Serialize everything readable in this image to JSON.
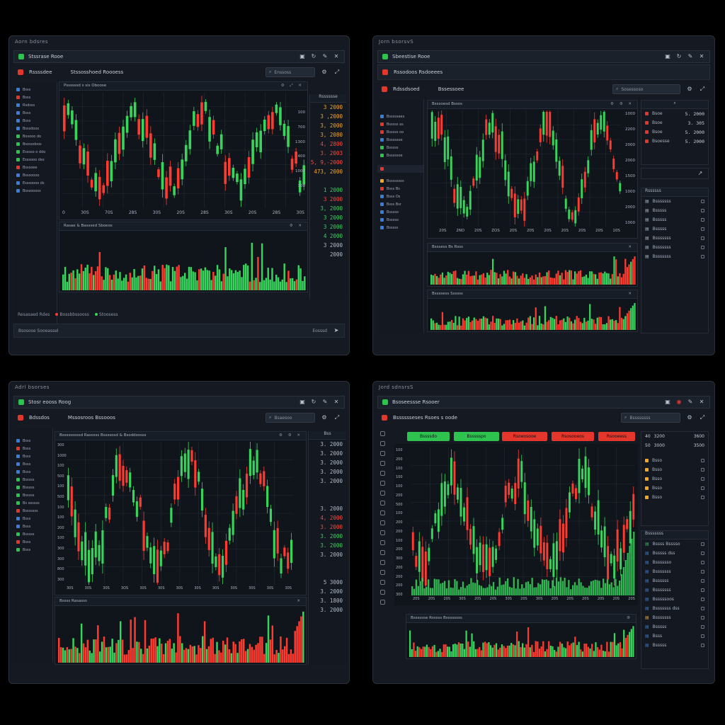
{
  "colors": {
    "up": "#38d45c",
    "down": "#ff3b30",
    "bg": "#151a22",
    "panel": "#10151c",
    "accent": "#f5a623"
  },
  "windows": [
    {
      "label": "Aorn bdsres",
      "title": "Stssrase Rooe",
      "toolbar_title": "Rssssdee",
      "toolbar_sub": "Stssosshoed Roooess",
      "search": "Enssoss",
      "sidebar": [
        "Bsss",
        "Bsss",
        "Rsdsss",
        "Bsss",
        "Bsss",
        "Bsssdoos",
        "Bosooo do",
        "Bsosodoos",
        "Esssso o ddo",
        "Esssooo dso",
        "Bsssoee",
        "Bsssoooo",
        "Esssoooo ds",
        "Bsssoooss"
      ],
      "chart_title": "Pssssssd s sis Oboose",
      "vol_title": "Rasae & Basssed Sboeos",
      "time_ticks": [
        "0",
        "30S",
        "70S",
        "28S",
        "30S",
        "20S",
        "28S",
        "30S",
        "20S",
        "28S",
        "30S"
      ],
      "axis_right": [
        "100",
        "700",
        "1300",
        "400",
        "1000",
        "300"
      ],
      "price_header": "Rsssssse",
      "prices": [
        {
          "v": "3 2000",
          "c": "orange"
        },
        {
          "v": "3 ,2000",
          "c": "orange"
        },
        {
          "v": "3, 2000",
          "c": "orange"
        },
        {
          "v": "3, 2080",
          "c": "orange"
        },
        {
          "v": "4, 2800",
          "c": "red"
        },
        {
          "v": "3. 2003",
          "c": "red"
        },
        {
          "v": "5, 9,-2000",
          "c": "red"
        },
        {
          "v": "473, 2000",
          "c": "orange"
        },
        {
          "v": "",
          "c": "grey"
        },
        {
          "v": "1 2000",
          "c": "green"
        },
        {
          "v": "3 2000",
          "c": "red"
        },
        {
          "v": "3, 2000",
          "c": "green"
        },
        {
          "v": "3 2000",
          "c": "green"
        },
        {
          "v": "3 2000",
          "c": "green"
        },
        {
          "v": "4 2000",
          "c": "green"
        },
        {
          "v": "3 2000",
          "c": "grey"
        },
        {
          "v": "2000",
          "c": "grey"
        }
      ],
      "status_left": "Resasaed Rdes",
      "legend": [
        "Bossbbssooss",
        "Stoosess"
      ],
      "footer": "Bsosose  Sooeassel",
      "footer_right": "Eosssd"
    },
    {
      "label": "Jorn bsorsvS",
      "title": "Sbeestise Rooe",
      "toolbar_title": "Rssodoos Rsdoeees",
      "toolbar_sub": "Rdssdsoed",
      "toolbar_sub2": "Bssessoee",
      "search": "Sosessoso",
      "sidebar": [
        "Bsssssees",
        "Bsssss as",
        "Bsssss oo",
        "Bsssssoe",
        "Bsssss",
        "Bsssssoe"
      ],
      "sidebar2": [
        "Bssssssos",
        "Bsss Bs",
        "Bsss Os",
        "Bsss Bsr",
        "Bsssso",
        "Bsssso",
        "Bsssss"
      ],
      "chart_title": "Bsssoesd Bssos",
      "vol_title": "Bsssess Bs Rsss",
      "vol2_title": "Bssssess Ssssss",
      "axis_right": [
        "1000",
        "2200",
        "2000",
        "2000",
        "1500",
        "1000",
        "2000",
        "1000"
      ],
      "ticks_bottom": [
        "20S",
        "2ND",
        "20S",
        "ZOS",
        "20S",
        "20S",
        "20S",
        "20S",
        "20S",
        "20S",
        "10S"
      ],
      "rlist_top": [
        {
          "name": "Bsoe",
          "v": "5. 2000"
        },
        {
          "name": "Bsoe",
          "v": "3. 305"
        },
        {
          "name": "Bsoe",
          "v": "5. 2000"
        },
        {
          "name": "Bsoesse",
          "v": "5. 2000"
        }
      ],
      "rlist_header": "Rssssss",
      "rlist_items": [
        "Bsssssss",
        "Bsssss",
        "Bsssss",
        "Bsssss",
        "Bsssssss",
        "Bsssssss",
        "Bsssssss"
      ]
    },
    {
      "label": "Adrl bsorses",
      "title": "Stosr eooss Roog",
      "toolbar_title": "Bdssdos",
      "toolbar_sub": "Mssosroos Bssooos",
      "search": "Bsaesoo",
      "sidebar": [
        "Bsss",
        "Bsss",
        "Bsss",
        "Bsss",
        "Bsss",
        "Bsssss",
        "Bsssss",
        "Bsssss",
        "Bs sessss",
        "Bsssssss",
        "Bsss",
        "Bsss",
        "Bsssss",
        "Bsss",
        "Bsss"
      ],
      "chart_title": "Bsssssssssd Rasssss Bssssosd & Bsoddossss",
      "vol_title": "Bssss Rasasss",
      "axis_left": [
        "300",
        "1000",
        "100",
        "500",
        "100",
        "500",
        "100",
        "100",
        "200",
        "100",
        "300",
        "300",
        "800",
        "300"
      ],
      "ticks_bottom": [
        "30S",
        "30S",
        "30S",
        "3OS",
        "30S",
        "30S",
        "30S",
        "30S",
        "30S",
        "30S",
        "30S",
        "30S",
        "30S"
      ],
      "price_header": "Bss",
      "prices": [
        {
          "v": "3. 2000",
          "c": "grey"
        },
        {
          "v": "3. 2000",
          "c": "grey"
        },
        {
          "v": "3. 2000",
          "c": "grey"
        },
        {
          "v": "3. 2000",
          "c": "grey"
        },
        {
          "v": "3. 2000",
          "c": "grey"
        },
        {
          "v": "",
          "c": "grey"
        },
        {
          "v": "",
          "c": "grey"
        },
        {
          "v": "3. 2000",
          "c": "grey"
        },
        {
          "v": "4, 2000",
          "c": "red"
        },
        {
          "v": "3. 2000",
          "c": "red"
        },
        {
          "v": "3. 2000",
          "c": "green"
        },
        {
          "v": "3. 2000",
          "c": "green"
        },
        {
          "v": "3. 2000",
          "c": "grey"
        },
        {
          "v": "",
          "c": "grey"
        },
        {
          "v": "",
          "c": "grey"
        },
        {
          "v": "5 3000",
          "c": "grey"
        },
        {
          "v": "3. 2000",
          "c": "grey"
        },
        {
          "v": "3. 1800",
          "c": "grey"
        },
        {
          "v": "3. 2000",
          "c": "grey"
        }
      ]
    },
    {
      "label": "Jord sdnsrsS",
      "title": "Bsoseessse Rsooer",
      "toolbar_sub": "Bsssssseses Rsoes s oode",
      "search": "Bssssssss",
      "tabs": [
        {
          "label": "Bssssdo",
          "color": "#2ec24e"
        },
        {
          "label": "Bssssspo",
          "color": "#2ec24e"
        },
        {
          "label": "Rsoeosooe",
          "color": "#e5362b"
        },
        {
          "label": "Rsosooeos",
          "color": "#e5362b"
        },
        {
          "label": "Rsooeess",
          "color": "#e5362b"
        }
      ],
      "axis_left": [
        "100",
        "200",
        "100",
        "100",
        "100",
        "200",
        "500",
        "100",
        "200",
        "200",
        "100",
        "200",
        "300",
        "200",
        "200",
        "200",
        "300"
      ],
      "ticks_bottom": [
        "20S",
        "20S",
        "20S",
        "30S",
        "20S",
        "20S",
        "30S",
        "20S",
        "30S",
        "20S",
        "20S",
        "20S",
        "20S",
        "20S",
        "20S"
      ],
      "vol_title": "Bsssssse Rsssss Bssssssss",
      "rtop": [
        {
          "a": "40",
          "b": "3200",
          "c": "3600"
        },
        {
          "a": "50",
          "b": "3000",
          "c": "3500"
        }
      ],
      "rtop_rows": [
        "Bsso",
        "Bsso",
        "Bsso",
        "Bsso",
        "Bsso"
      ],
      "rlist_header": "Bsssssss",
      "rlist_items": [
        "Bssss Bsssso",
        "Bsssss dss",
        "Bsssssso",
        "Bsssssss",
        "Bssssss",
        "Bsssssss",
        "Bsssssoos",
        "Bsssssss dss",
        "Bsssssss",
        "Bsssss",
        "Bsss",
        "Bsssss"
      ]
    }
  ]
}
